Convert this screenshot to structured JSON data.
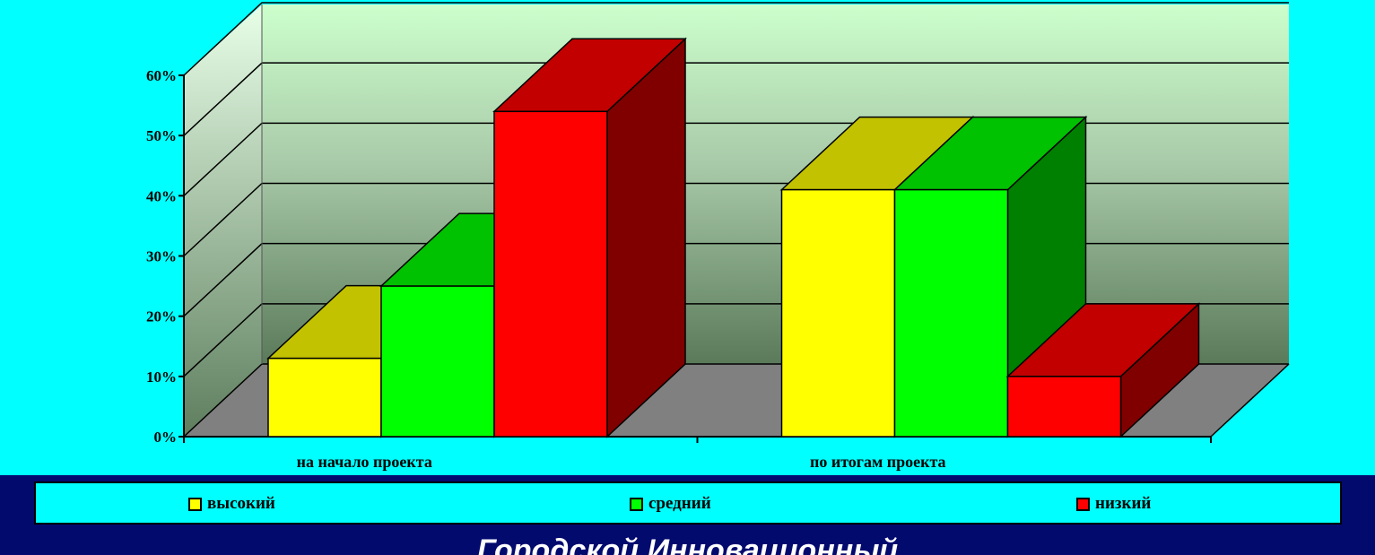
{
  "chart_data": {
    "type": "bar",
    "categories": [
      "на начало проекта",
      "по итогам проекта"
    ],
    "series": [
      {
        "name": "высокий",
        "values": [
          13,
          41
        ],
        "color": "#ffff00"
      },
      {
        "name": "средний",
        "values": [
          25,
          41
        ],
        "color": "#00ff00"
      },
      {
        "name": "низкий",
        "values": [
          54,
          10
        ],
        "color": "#ff0000"
      }
    ],
    "ylim": [
      0,
      60
    ],
    "yticks": [
      "0%",
      "10%",
      "20%",
      "30%",
      "40%",
      "50%",
      "60%"
    ],
    "ytick_values": [
      0,
      10,
      20,
      30,
      40,
      50,
      60
    ],
    "grid": true,
    "legend": "bottom",
    "style": "3d"
  },
  "footer": {
    "text": "Городской Инновационный"
  }
}
